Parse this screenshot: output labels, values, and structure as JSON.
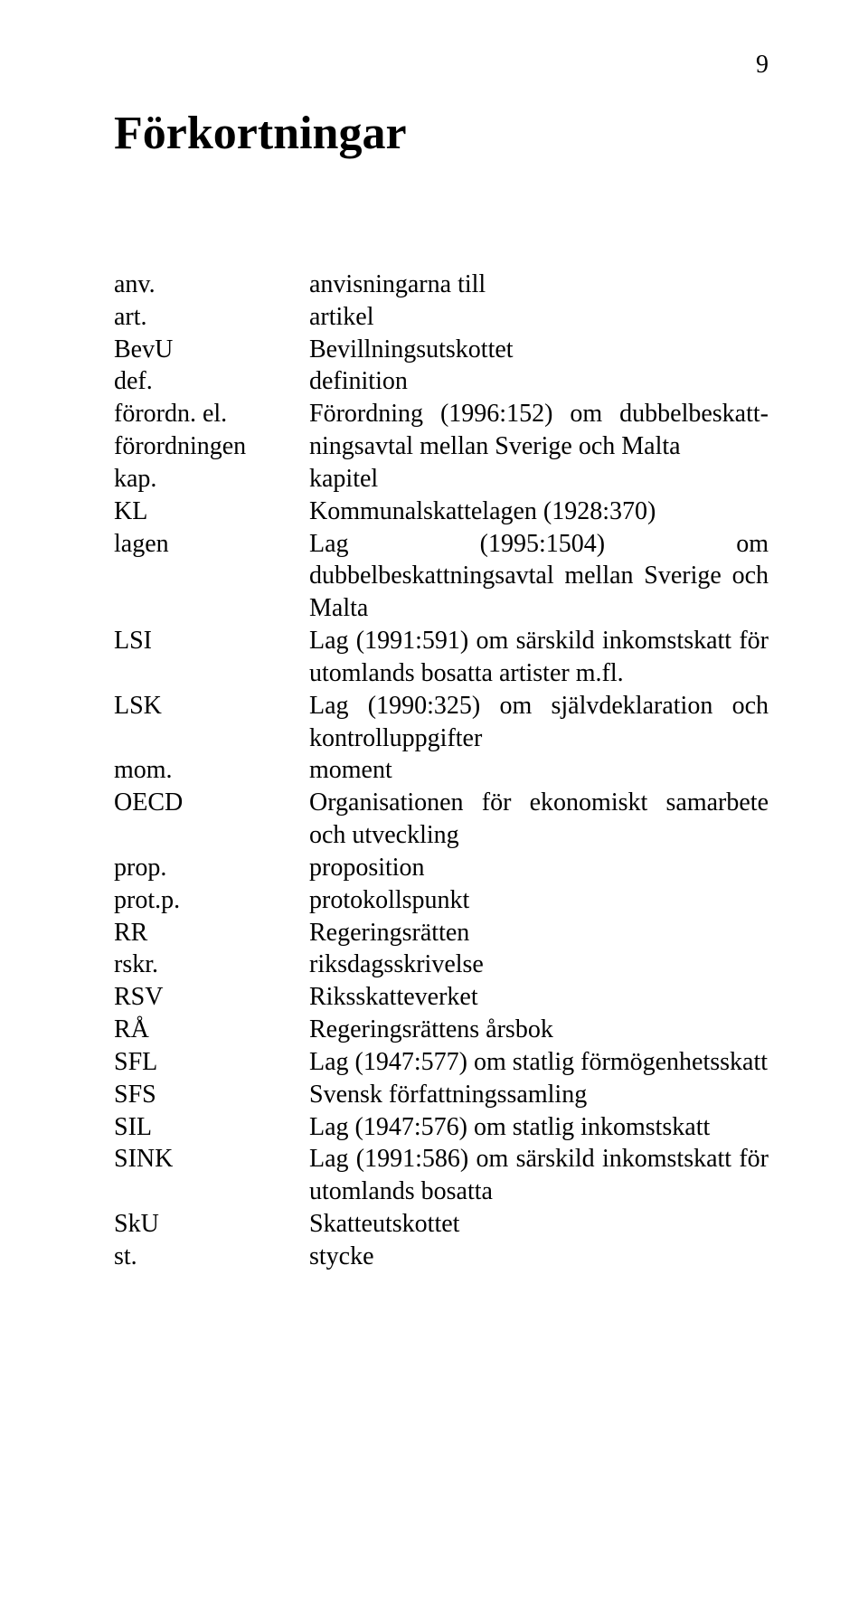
{
  "page_number": "9",
  "heading": "Förkortningar",
  "rows": [
    {
      "term": "anv.",
      "def": "anvisningarna till"
    },
    {
      "term": "art.",
      "def": "artikel"
    },
    {
      "term": "BevU",
      "def": "Bevillningsutskottet"
    },
    {
      "term": "def.",
      "def": "definition"
    },
    {
      "term": "förordn. el. förordningen",
      "def": "Förordning (1996:152) om dubbelbeskatt­ningsavtal mellan Sverige och Malta"
    },
    {
      "term": "kap.",
      "def": "kapitel"
    },
    {
      "term": "KL",
      "def": "Kommunalskattelagen (1928:370)"
    },
    {
      "term": "lagen",
      "def": "Lag (1995:1504) om dubbelbeskattningsavtal mellan Sverige och Malta"
    },
    {
      "term": "LSI",
      "def": "Lag (1991:591) om särskild inkomstskatt för utomlands bosatta artister m.fl."
    },
    {
      "term": "LSK",
      "def": "Lag (1990:325) om självdeklaration och kontroll­uppgifter"
    },
    {
      "term": "mom.",
      "def": "moment"
    },
    {
      "term": "OECD",
      "def": "Organisationen för ekonomiskt samarbete och utveckling"
    },
    {
      "term": "prop.",
      "def": "proposition"
    },
    {
      "term": "prot.p.",
      "def": "protokollspunkt"
    },
    {
      "term": "RR",
      "def": "Regeringsrätten"
    },
    {
      "term": "rskr.",
      "def": "riksdagsskrivelse"
    },
    {
      "term": "RSV",
      "def": "Riksskatteverket"
    },
    {
      "term": "RÅ",
      "def": "Regeringsrättens årsbok"
    },
    {
      "term": "SFL",
      "def": "Lag (1947:577) om statlig förmögenhetsskatt"
    },
    {
      "term": "SFS",
      "def": "Svensk författningssamling"
    },
    {
      "term": "SIL",
      "def": "Lag (1947:576) om statlig inkomstskatt"
    },
    {
      "term": "SINK",
      "def": "Lag (1991:586) om särskild inkomstskatt för utomlands bosatta"
    },
    {
      "term": "SkU",
      "def": "Skatteutskottet"
    },
    {
      "term": "st.",
      "def": "stycke"
    }
  ]
}
